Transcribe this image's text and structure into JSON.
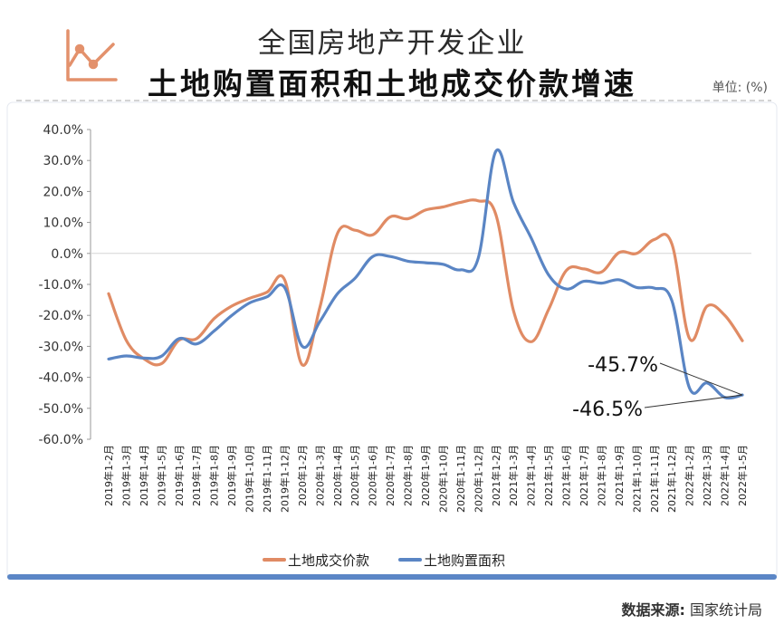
{
  "header": {
    "title_line1": "全国房地产开发企业",
    "title_line2": "土地购置面积和土地成交价款增速",
    "unit": "单位: (%)"
  },
  "source": {
    "label": "数据来源:",
    "value": "国家统计局"
  },
  "colors": {
    "orange": "#E08B64",
    "blue": "#5A85C4",
    "panel_border": "#5B86C6",
    "icon": "#E3916C"
  },
  "icon": "line-chart-icon",
  "chart_data": {
    "type": "line",
    "ylim": [
      -60,
      40
    ],
    "y_ticks": [
      40,
      30,
      20,
      10,
      0,
      -10,
      -20,
      -30,
      -40,
      -50,
      -60
    ],
    "y_tick_labels": [
      "40.0%",
      "30.0%",
      "20.0%",
      "10.0%",
      "0.0%",
      "-10.0%",
      "-20.0%",
      "-30.0%",
      "-40.0%",
      "-50.0%",
      "-60.0%"
    ],
    "categories": [
      "2019年1-2月",
      "2019年1-3月",
      "2019年1-4月",
      "2019年1-5月",
      "2019年1-6月",
      "2019年1-7月",
      "2019年1-8月",
      "2019年1-9月",
      "2019年1-10月",
      "2019年1-11月",
      "2019年1-12月",
      "2020年1-2月",
      "2020年1-3月",
      "2020年1-4月",
      "2020年1-5月",
      "2020年1-6月",
      "2020年1-7月",
      "2020年1-8月",
      "2020年1-9月",
      "2020年1-10月",
      "2020年1-11月",
      "2020年1-12月",
      "2021年1-2月",
      "2021年1-3月",
      "2021年1-4月",
      "2021年1-5月",
      "2021年1-6月",
      "2021年1-7月",
      "2021年1-8月",
      "2021年1-9月",
      "2021年1-10月",
      "2021年1-11月",
      "2021年1-12月",
      "2022年1-2月",
      "2022年1-3月",
      "2022年1-4月",
      "2022年1-5月"
    ],
    "series": [
      {
        "name": "土地成交价款",
        "color": "#E08B64",
        "values": [
          -13.0,
          -28.0,
          -34.0,
          -35.6,
          -28.0,
          -27.5,
          -21.0,
          -17.0,
          -14.5,
          -12.5,
          -8.5,
          -36.0,
          -17.5,
          6.5,
          7.5,
          6.0,
          11.8,
          11.2,
          14.0,
          15.0,
          16.5,
          17.0,
          12.5,
          -18.5,
          -28.5,
          -18.0,
          -5.5,
          -5.0,
          -6.0,
          0.3,
          0.0,
          4.5,
          3.0,
          -27.5,
          -17.0,
          -20.0,
          -28.2
        ]
      },
      {
        "name": "土地购置面积",
        "color": "#5A85C4",
        "values": [
          -34.1,
          -33.1,
          -33.8,
          -33.2,
          -27.5,
          -29.2,
          -25.0,
          -20.0,
          -16.0,
          -14.0,
          -11.0,
          -30.0,
          -22.0,
          -13.0,
          -8.0,
          -1.0,
          -1.0,
          -2.5,
          -3.0,
          -3.5,
          -5.3,
          -1.5,
          33.0,
          16.5,
          5.0,
          -7.0,
          -11.5,
          -9.0,
          -9.6,
          -8.5,
          -11.0,
          -11.2,
          -15.3,
          -43.5,
          -41.8,
          -46.5,
          -45.7
        ]
      }
    ],
    "annotations": [
      "-45.7%",
      "-46.5%"
    ]
  }
}
